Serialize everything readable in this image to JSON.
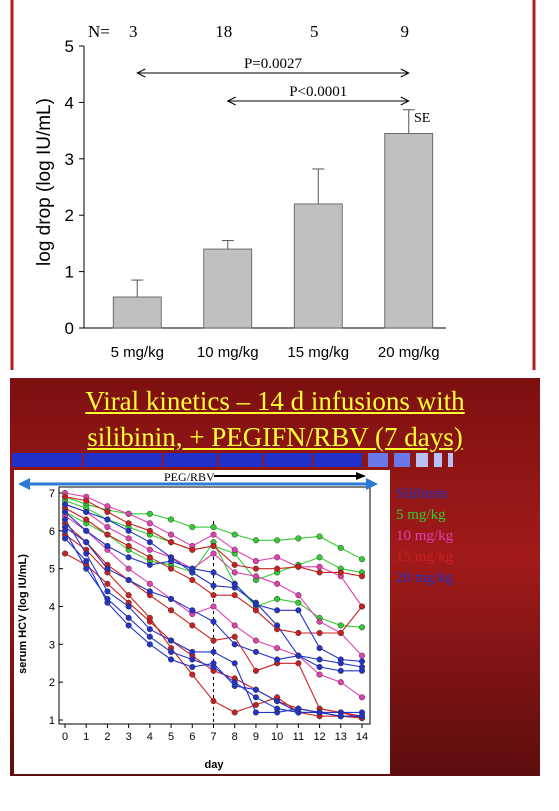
{
  "chart_data": [
    {
      "type": "bar",
      "categories": [
        "5 mg/kg",
        "10 mg/kg",
        "15 mg/kg",
        "20 mg/kg"
      ],
      "values": [
        0.55,
        1.4,
        2.2,
        3.45
      ],
      "error": [
        0.3,
        0.15,
        0.62,
        0.42
      ],
      "ylabel": "log drop (log IU/mL)",
      "ylim": [
        0,
        5
      ],
      "yticks": [
        "0",
        "1",
        "2",
        "3",
        "4",
        "5"
      ],
      "n_label": "N=",
      "n_values": [
        "3",
        "18",
        "5",
        "9"
      ],
      "error_label": "SE",
      "annotations": [
        {
          "text": "P=0.0027",
          "from": "5 mg/kg",
          "to": "20 mg/kg"
        },
        {
          "text": "P<0.0001",
          "from": "10 mg/kg",
          "to": "20 mg/kg"
        }
      ]
    },
    {
      "type": "line",
      "title_lines": [
        "Viral kinetics – 14 d infusions with",
        "silibinin, + PEGIFN/RBV (7 days)"
      ],
      "xlabel": "day",
      "ylabel": "serum HCV (log IU/mL)",
      "xlim": [
        0,
        14
      ],
      "ylim": [
        1,
        7
      ],
      "xticks": [
        "0",
        "1",
        "2",
        "3",
        "4",
        "5",
        "6",
        "7",
        "8",
        "9",
        "10",
        "11",
        "12",
        "13",
        "14"
      ],
      "yticks": [
        "1",
        "2",
        "3",
        "4",
        "5",
        "6",
        "7"
      ],
      "arrow_label": "PEG/RBV",
      "vline_day": 7,
      "x": [
        0,
        1,
        2,
        3,
        4,
        5,
        6,
        7,
        8,
        9,
        10,
        11,
        12,
        13,
        14
      ],
      "legend_title": "Silibinin",
      "series": [
        {
          "name": "5 mg/kg",
          "color": "#33cc33",
          "values": [
            6.9,
            6.7,
            6.55,
            6.45,
            6.45,
            6.3,
            6.1,
            6.1,
            5.9,
            5.75,
            5.75,
            5.8,
            5.85,
            5.55,
            5.25
          ]
        },
        {
          "name": "5 mg/kg",
          "color": "#33cc33",
          "values": [
            6.8,
            6.6,
            6.3,
            6.1,
            5.9,
            5.7,
            5.5,
            5.6,
            5.4,
            4.7,
            4.9,
            5.1,
            5.3,
            5.0,
            4.9
          ]
        },
        {
          "name": "5 mg/kg",
          "color": "#33cc33",
          "values": [
            6.5,
            6.2,
            5.9,
            5.5,
            5.2,
            5.1,
            4.9,
            5.7,
            4.6,
            4.0,
            4.2,
            4.1,
            3.7,
            3.5,
            3.45
          ]
        },
        {
          "name": "10 mg/kg",
          "color": "#e040b0",
          "values": [
            7.0,
            6.9,
            6.65,
            6.45,
            6.2,
            5.9,
            5.6,
            5.9,
            5.5,
            5.2,
            5.3,
            5.05,
            5.05,
            4.8,
            4.0
          ]
        },
        {
          "name": "10 mg/kg",
          "color": "#e040b0",
          "values": [
            6.7,
            6.5,
            6.1,
            5.8,
            5.5,
            5.3,
            5.0,
            5.4,
            4.9,
            4.8,
            4.6,
            4.3,
            3.6,
            3.3,
            2.7
          ]
        },
        {
          "name": "10 mg/kg",
          "color": "#e040b0",
          "values": [
            6.4,
            6.0,
            5.5,
            5.0,
            4.6,
            4.2,
            3.8,
            4.0,
            3.5,
            3.1,
            2.9,
            2.7,
            2.2,
            2.0,
            1.6
          ]
        },
        {
          "name": "15 mg/kg",
          "color": "#cc2020",
          "values": [
            6.9,
            6.8,
            6.5,
            6.2,
            6.0,
            5.7,
            5.5,
            5.6,
            5.1,
            5.0,
            5.0,
            5.05,
            4.9,
            4.9,
            4.8
          ]
        },
        {
          "name": "15 mg/kg",
          "color": "#cc2020",
          "values": [
            6.6,
            6.3,
            5.9,
            5.6,
            5.3,
            5.0,
            4.7,
            4.3,
            4.3,
            3.9,
            3.4,
            3.3,
            3.3,
            3.3,
            4.0
          ]
        },
        {
          "name": "15 mg/kg",
          "color": "#cc2020",
          "values": [
            6.2,
            5.7,
            5.1,
            4.7,
            4.3,
            3.9,
            3.5,
            3.1,
            3.2,
            2.3,
            2.5,
            2.5,
            1.3,
            1.2,
            1.1
          ]
        },
        {
          "name": "15 mg/kg",
          "color": "#cc2020",
          "values": [
            5.4,
            5.1,
            4.6,
            4.1,
            3.6,
            3.1,
            2.7,
            2.3,
            2.1,
            1.8,
            1.5,
            1.3,
            1.2,
            1.2,
            1.05
          ]
        },
        {
          "name": "15 mg/kg",
          "color": "#cc2020",
          "values": [
            5.9,
            5.5,
            4.9,
            4.3,
            3.7,
            2.9,
            2.2,
            1.5,
            1.2,
            1.4,
            1.6,
            1.2,
            1.1,
            1.1,
            1.05
          ]
        },
        {
          "name": "20 mg/kg",
          "color": "#2233cc",
          "values": [
            6.7,
            6.5,
            6.3,
            6.0,
            5.7,
            5.3,
            4.9,
            4.55,
            4.5,
            4.1,
            3.5,
            2.7,
            2.6,
            2.5,
            2.4
          ]
        },
        {
          "name": "20 mg/kg",
          "color": "#2233cc",
          "values": [
            6.5,
            6.0,
            5.6,
            5.3,
            5.1,
            5.2,
            5.0,
            4.9,
            4.6,
            4.05,
            3.9,
            3.9,
            2.9,
            2.6,
            2.55
          ]
        },
        {
          "name": "20 mg/kg",
          "color": "#2233cc",
          "values": [
            6.1,
            5.7,
            5.0,
            4.7,
            4.4,
            4.2,
            3.9,
            3.6,
            3.0,
            2.8,
            2.6,
            2.7,
            2.4,
            2.3,
            2.3
          ]
        },
        {
          "name": "20 mg/kg",
          "color": "#2233cc",
          "values": [
            6.3,
            5.4,
            4.4,
            4.0,
            3.4,
            3.1,
            2.8,
            2.8,
            2.5,
            1.2,
            1.2,
            1.3,
            1.2,
            1.1,
            1.1
          ]
        },
        {
          "name": "20 mg/kg",
          "color": "#2233cc",
          "values": [
            5.8,
            5.2,
            4.1,
            3.5,
            3.0,
            2.6,
            2.4,
            2.5,
            1.9,
            1.8,
            1.5,
            1.2,
            1.2,
            1.2,
            1.2
          ]
        },
        {
          "name": "20 mg/kg",
          "color": "#2233cc",
          "values": [
            6.0,
            5.0,
            4.2,
            3.7,
            3.2,
            2.8,
            2.6,
            2.4,
            2.0,
            1.6,
            1.3,
            1.2,
            1.2,
            1.1,
            1.1
          ]
        }
      ]
    }
  ],
  "legend": {
    "title": "Silibinin",
    "items": [
      {
        "label": "5 mg/kg",
        "color": "#33cc33"
      },
      {
        "label": "10 mg/kg",
        "color": "#e040b0"
      },
      {
        "label": "15 mg/kg",
        "color": "#cc2020"
      },
      {
        "label": "20 mg/kg",
        "color": "#2233cc"
      }
    ]
  },
  "colors": {
    "bar_fill": "#c0c0c0",
    "frame_red": "#b01c24",
    "title_yellow": "#ffff33",
    "stripe_blue": "#1f2fc8",
    "arrow_blue": "#2a7ad6"
  }
}
